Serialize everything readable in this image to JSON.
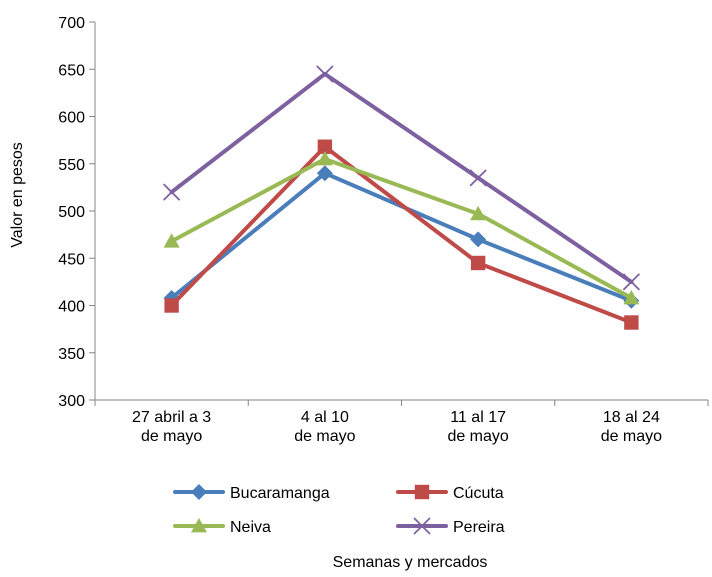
{
  "chart_data": {
    "type": "line",
    "title": "",
    "xlabel": "Semanas y mercados",
    "ylabel": "Valor en pesos",
    "ylim": [
      300,
      700
    ],
    "yticks": [
      300,
      350,
      400,
      450,
      500,
      550,
      600,
      650,
      700
    ],
    "grid": false,
    "legend_position": "bottom",
    "categories": [
      [
        "27 abril a 3",
        "de mayo"
      ],
      [
        "4 al 10",
        "de mayo"
      ],
      [
        "11 al 17",
        "de mayo"
      ],
      [
        "18 al 24",
        "de mayo"
      ]
    ],
    "series": [
      {
        "name": "Bucaramanga",
        "values": [
          408,
          540,
          470,
          405
        ],
        "color": "#4a7ebb",
        "marker": "diamond"
      },
      {
        "name": "Cúcuta",
        "values": [
          400,
          568,
          445,
          382
        ],
        "color": "#be4b48",
        "marker": "square"
      },
      {
        "name": "Neiva",
        "values": [
          468,
          555,
          497,
          408
        ],
        "color": "#98b954",
        "marker": "triangle"
      },
      {
        "name": "Pereira",
        "values": [
          520,
          645,
          535,
          425
        ],
        "color": "#7d60a0",
        "marker": "x"
      }
    ]
  }
}
